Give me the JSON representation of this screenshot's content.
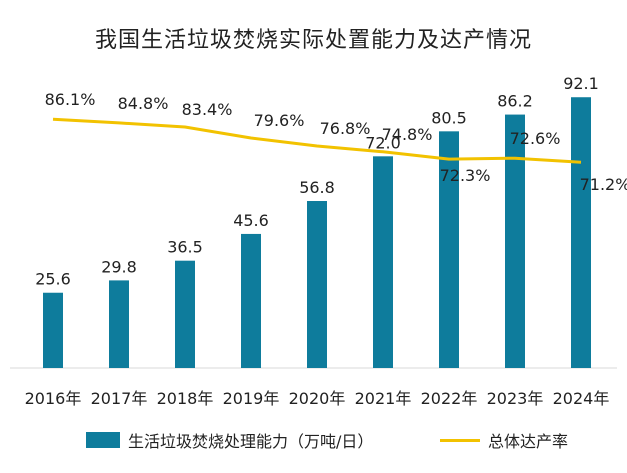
{
  "chart_data": {
    "type": "bar",
    "title": "我国生活垃圾焚烧实际处置能力及达产情况",
    "categories": [
      "2016年",
      "2017年",
      "2018年",
      "2019年",
      "2020年",
      "2021年",
      "2022年",
      "2023年",
      "2024年"
    ],
    "series": [
      {
        "name": "生活垃圾焚烧处理能力（万吨/日）",
        "type": "bar",
        "color": "#0e7c9c",
        "values": [
          25.6,
          29.8,
          36.5,
          45.6,
          56.8,
          72.0,
          80.5,
          86.2,
          92.1
        ],
        "labels": [
          "25.6",
          "29.8",
          "36.5",
          "45.6",
          "56.8",
          "72.0",
          "80.5",
          "86.2",
          "92.1"
        ]
      },
      {
        "name": "总体达产率",
        "type": "line",
        "color": "#f2c200",
        "unit": "%",
        "values": [
          86.1,
          84.8,
          83.4,
          79.6,
          76.8,
          74.8,
          72.3,
          72.6,
          71.2
        ],
        "labels": [
          "86.1%",
          "84.8%",
          "83.4%",
          "79.6%",
          "76.8%",
          "74.8%",
          "72.3%",
          "72.6%",
          "71.2%"
        ]
      }
    ],
    "bar_axis_range": [
      0,
      100
    ],
    "line_axis_range": [
      0,
      100
    ],
    "xlabel": "",
    "ylabel": "",
    "grid": false,
    "legend_position": "bottom"
  }
}
